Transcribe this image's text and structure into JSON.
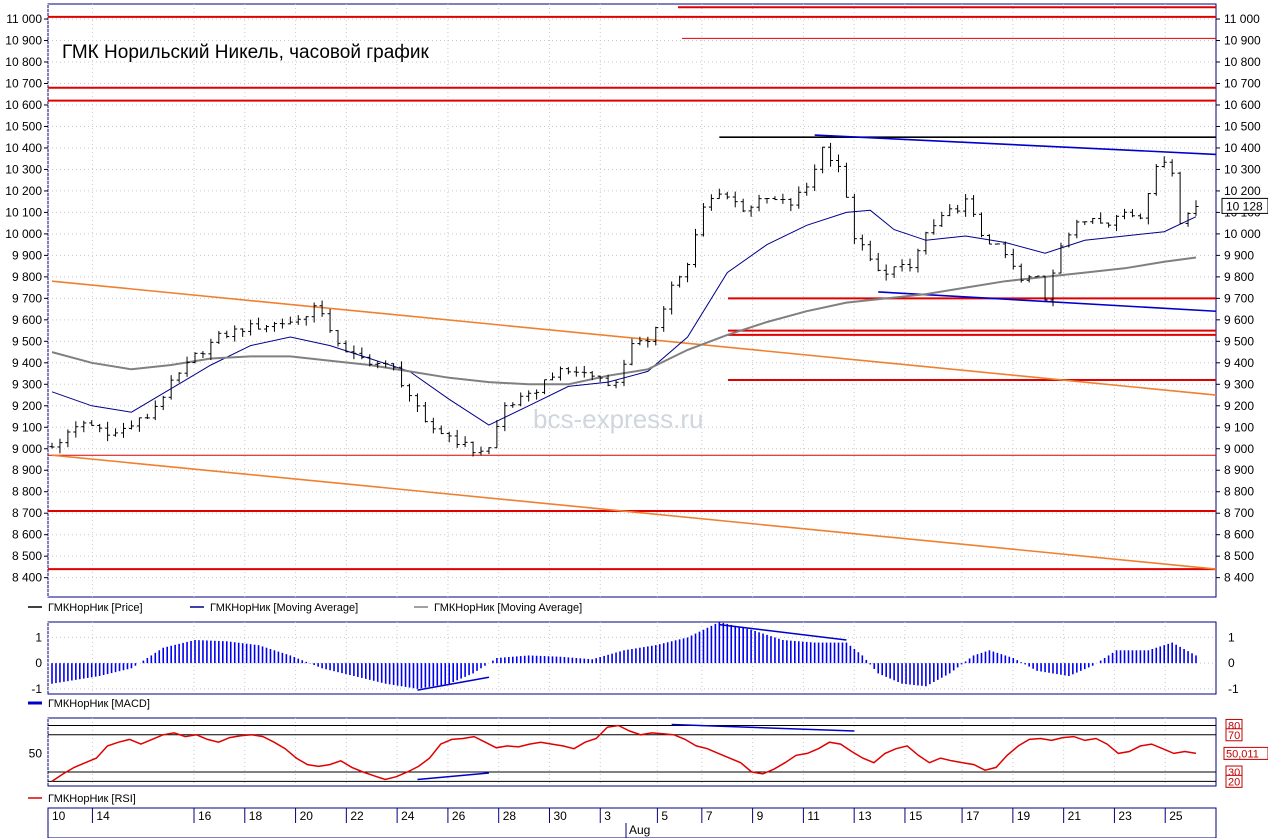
{
  "chart_data": [
    {
      "type": "candlestick",
      "title": "ГМК Норильский Никель, часовой график",
      "watermark": "bcs-express.ru",
      "ylim": [
        8310,
        11070
      ],
      "yticks": [
        "11 000",
        "10 900",
        "10 800",
        "10 700",
        "10 600",
        "10 500",
        "10 400",
        "10 300",
        "10 200",
        "10 100",
        "10 000",
        "9 900",
        "9 800",
        "9 700",
        "9 600",
        "9 500",
        "9 400",
        "9 300",
        "9 200",
        "9 100",
        "9 000",
        "8 900",
        "8 800",
        "8 700",
        "8 600",
        "8 500",
        "8 400"
      ],
      "ytick_values": [
        11000,
        10900,
        10800,
        10700,
        10600,
        10500,
        10400,
        10300,
        10200,
        10100,
        10000,
        9900,
        9800,
        9700,
        9600,
        9500,
        9400,
        9300,
        9200,
        9100,
        9000,
        8900,
        8800,
        8700,
        8600,
        8500,
        8400
      ],
      "last_price_label": "10 128",
      "last_price": 10128,
      "price_path": [
        [
          0,
          9010
        ],
        [
          4,
          9120
        ],
        [
          8,
          9070
        ],
        [
          12,
          9150
        ],
        [
          15,
          9300
        ],
        [
          18,
          9430
        ],
        [
          21,
          9520
        ],
        [
          24,
          9560
        ],
        [
          28,
          9580
        ],
        [
          31,
          9600
        ],
        [
          33,
          9660
        ],
        [
          35,
          9560
        ],
        [
          37,
          9440
        ],
        [
          40,
          9410
        ],
        [
          43,
          9370
        ],
        [
          45,
          9250
        ],
        [
          47,
          9110
        ],
        [
          50,
          9060
        ],
        [
          53,
          8990
        ],
        [
          55,
          9000
        ],
        [
          57,
          9200
        ],
        [
          60,
          9240
        ],
        [
          63,
          9350
        ],
        [
          66,
          9360
        ],
        [
          69,
          9330
        ],
        [
          71,
          9300
        ],
        [
          73,
          9500
        ],
        [
          75,
          9480
        ],
        [
          78,
          9760
        ],
        [
          80,
          9850
        ],
        [
          82,
          10120
        ],
        [
          84,
          10200
        ],
        [
          87,
          10120
        ],
        [
          90,
          10160
        ],
        [
          93,
          10140
        ],
        [
          95,
          10220
        ],
        [
          97,
          10400
        ],
        [
          99,
          10320
        ],
        [
          101,
          9990
        ],
        [
          104,
          9820
        ],
        [
          106,
          9840
        ],
        [
          108,
          9840
        ],
        [
          110,
          10000
        ],
        [
          113,
          10100
        ],
        [
          115,
          10150
        ],
        [
          117,
          10000
        ],
        [
          120,
          9900
        ],
        [
          122,
          9780
        ],
        [
          124,
          9800
        ],
        [
          125,
          9700
        ],
        [
          127,
          9960
        ],
        [
          129,
          10040
        ],
        [
          131,
          10080
        ],
        [
          133,
          10060
        ],
        [
          135,
          10100
        ],
        [
          137,
          10080
        ],
        [
          139,
          10330
        ],
        [
          141,
          10300
        ],
        [
          142,
          10060
        ],
        [
          144,
          10128
        ]
      ],
      "series": [
        {
          "name": "ГМКНорНик [Price]",
          "color": "#000000"
        },
        {
          "name": "ГМКНорНик [Moving Average]",
          "color": "#00008b",
          "points": [
            [
              0,
              9265
            ],
            [
              5,
              9200
            ],
            [
              10,
              9170
            ],
            [
              15,
              9280
            ],
            [
              20,
              9390
            ],
            [
              25,
              9480
            ],
            [
              30,
              9520
            ],
            [
              35,
              9480
            ],
            [
              40,
              9420
            ],
            [
              45,
              9360
            ],
            [
              50,
              9230
            ],
            [
              55,
              9110
            ],
            [
              60,
              9200
            ],
            [
              65,
              9290
            ],
            [
              70,
              9310
            ],
            [
              75,
              9360
            ],
            [
              80,
              9520
            ],
            [
              85,
              9820
            ],
            [
              90,
              9950
            ],
            [
              95,
              10040
            ],
            [
              100,
              10100
            ],
            [
              103,
              10110
            ],
            [
              106,
              10020
            ],
            [
              110,
              9970
            ],
            [
              115,
              9990
            ],
            [
              120,
              9960
            ],
            [
              125,
              9910
            ],
            [
              130,
              9970
            ],
            [
              135,
              9990
            ],
            [
              140,
              10010
            ],
            [
              144,
              10080
            ]
          ]
        },
        {
          "name": "ГМКНорНик [Moving Average]",
          "color": "#808080",
          "points": [
            [
              0,
              9450
            ],
            [
              5,
              9400
            ],
            [
              10,
              9370
            ],
            [
              15,
              9390
            ],
            [
              20,
              9420
            ],
            [
              25,
              9430
            ],
            [
              30,
              9430
            ],
            [
              35,
              9410
            ],
            [
              40,
              9390
            ],
            [
              45,
              9360
            ],
            [
              50,
              9330
            ],
            [
              55,
              9310
            ],
            [
              60,
              9300
            ],
            [
              65,
              9300
            ],
            [
              70,
              9340
            ],
            [
              75,
              9370
            ],
            [
              80,
              9460
            ],
            [
              85,
              9530
            ],
            [
              90,
              9590
            ],
            [
              95,
              9640
            ],
            [
              100,
              9680
            ],
            [
              105,
              9700
            ],
            [
              110,
              9720
            ],
            [
              115,
              9750
            ],
            [
              120,
              9780
            ],
            [
              125,
              9800
            ],
            [
              130,
              9820
            ],
            [
              135,
              9840
            ],
            [
              140,
              9870
            ],
            [
              144,
              9890
            ]
          ]
        }
      ],
      "levels": [
        11010,
        10680,
        10620,
        9700,
        9550,
        9530,
        9320,
        8970,
        8710,
        8440
      ],
      "trend_lines": [
        {
          "color": "#000000",
          "from": [
            84,
            10450
          ],
          "to": [
            144,
            10450
          ]
        },
        {
          "color": "#0000cd",
          "from": [
            96,
            10460
          ],
          "to": [
            144,
            10370
          ]
        },
        {
          "color": "#0000cd",
          "from": [
            104,
            9730
          ],
          "to": [
            144,
            9640
          ]
        },
        {
          "color": "#f08030",
          "from": [
            0,
            9780
          ],
          "to": [
            144,
            9250
          ]
        },
        {
          "color": "#f08030",
          "from": [
            0,
            8970
          ],
          "to": [
            144,
            8440
          ]
        }
      ]
    },
    {
      "type": "bar",
      "name": "ГМКНорНик [MACD]",
      "ylim": [
        -1.2,
        1.6
      ],
      "yticks": [
        "1",
        "0",
        "-1"
      ],
      "ytick_values": [
        1,
        0,
        -1
      ],
      "path": [
        [
          0,
          -0.8
        ],
        [
          6,
          -0.5
        ],
        [
          10,
          -0.2
        ],
        [
          14,
          0.6
        ],
        [
          18,
          0.9
        ],
        [
          22,
          0.85
        ],
        [
          26,
          0.7
        ],
        [
          30,
          0.3
        ],
        [
          34,
          -0.2
        ],
        [
          38,
          -0.5
        ],
        [
          42,
          -0.8
        ],
        [
          46,
          -1.0
        ],
        [
          50,
          -0.8
        ],
        [
          53,
          -0.4
        ],
        [
          56,
          0.2
        ],
        [
          60,
          0.3
        ],
        [
          64,
          0.25
        ],
        [
          68,
          0.15
        ],
        [
          72,
          0.5
        ],
        [
          76,
          0.7
        ],
        [
          80,
          1.0
        ],
        [
          84,
          1.6
        ],
        [
          88,
          1.3
        ],
        [
          92,
          0.9
        ],
        [
          96,
          0.8
        ],
        [
          100,
          0.8
        ],
        [
          102,
          0.3
        ],
        [
          104,
          -0.4
        ],
        [
          107,
          -0.8
        ],
        [
          110,
          -0.9
        ],
        [
          113,
          -0.4
        ],
        [
          116,
          0.3
        ],
        [
          118,
          0.5
        ],
        [
          121,
          0.2
        ],
        [
          124,
          -0.3
        ],
        [
          128,
          -0.5
        ],
        [
          131,
          -0.1
        ],
        [
          134,
          0.5
        ],
        [
          138,
          0.5
        ],
        [
          141,
          0.8
        ],
        [
          144,
          0.3
        ]
      ],
      "trend_lines": [
        {
          "from": [
            84,
            1.5
          ],
          "to": [
            100,
            0.9
          ]
        },
        {
          "from": [
            46,
            -1.05
          ],
          "to": [
            55,
            -0.55
          ]
        }
      ]
    },
    {
      "type": "line",
      "name": "ГМКНорНик [RSI]",
      "ylim": [
        15,
        88
      ],
      "level_labels": [
        "80",
        "70",
        "30",
        "20"
      ],
      "level_values": [
        80,
        70,
        30,
        20
      ],
      "yticks": [
        "50"
      ],
      "ytick_values": [
        50
      ],
      "last_label": "50,011",
      "last_value": 50.011,
      "values": [
        20,
        28,
        35,
        40,
        45,
        58,
        62,
        65,
        60,
        65,
        70,
        72,
        68,
        70,
        65,
        62,
        67,
        69,
        70,
        68,
        62,
        55,
        45,
        38,
        36,
        38,
        42,
        35,
        30,
        26,
        22,
        25,
        30,
        36,
        45,
        60,
        65,
        66,
        68,
        62,
        56,
        58,
        57,
        60,
        62,
        60,
        58,
        55,
        62,
        66,
        78,
        80,
        74,
        70,
        72,
        71,
        70,
        65,
        58,
        55,
        50,
        45,
        40,
        30,
        28,
        33,
        40,
        48,
        50,
        55,
        62,
        60,
        52,
        45,
        40,
        50,
        55,
        58,
        48,
        40,
        45,
        42,
        40,
        38,
        32,
        35,
        48,
        58,
        65,
        66,
        64,
        67,
        68,
        64,
        66,
        60,
        50,
        52,
        58,
        60,
        55,
        50,
        52,
        50
      ],
      "trend_lines": [
        {
          "from": [
            78,
            81
          ],
          "to": [
            101,
            74
          ]
        },
        {
          "from": [
            46,
            22
          ],
          "to": [
            55,
            29
          ]
        }
      ]
    }
  ],
  "x_axis": {
    "labels": [
      "10",
      "14",
      "16",
      "18",
      "20",
      "22",
      "24",
      "26",
      "28",
      "30",
      "3",
      "5",
      "7",
      "9",
      "11",
      "13",
      "15",
      "17",
      "19",
      "21",
      "23",
      "25"
    ],
    "month_label": "Aug"
  }
}
